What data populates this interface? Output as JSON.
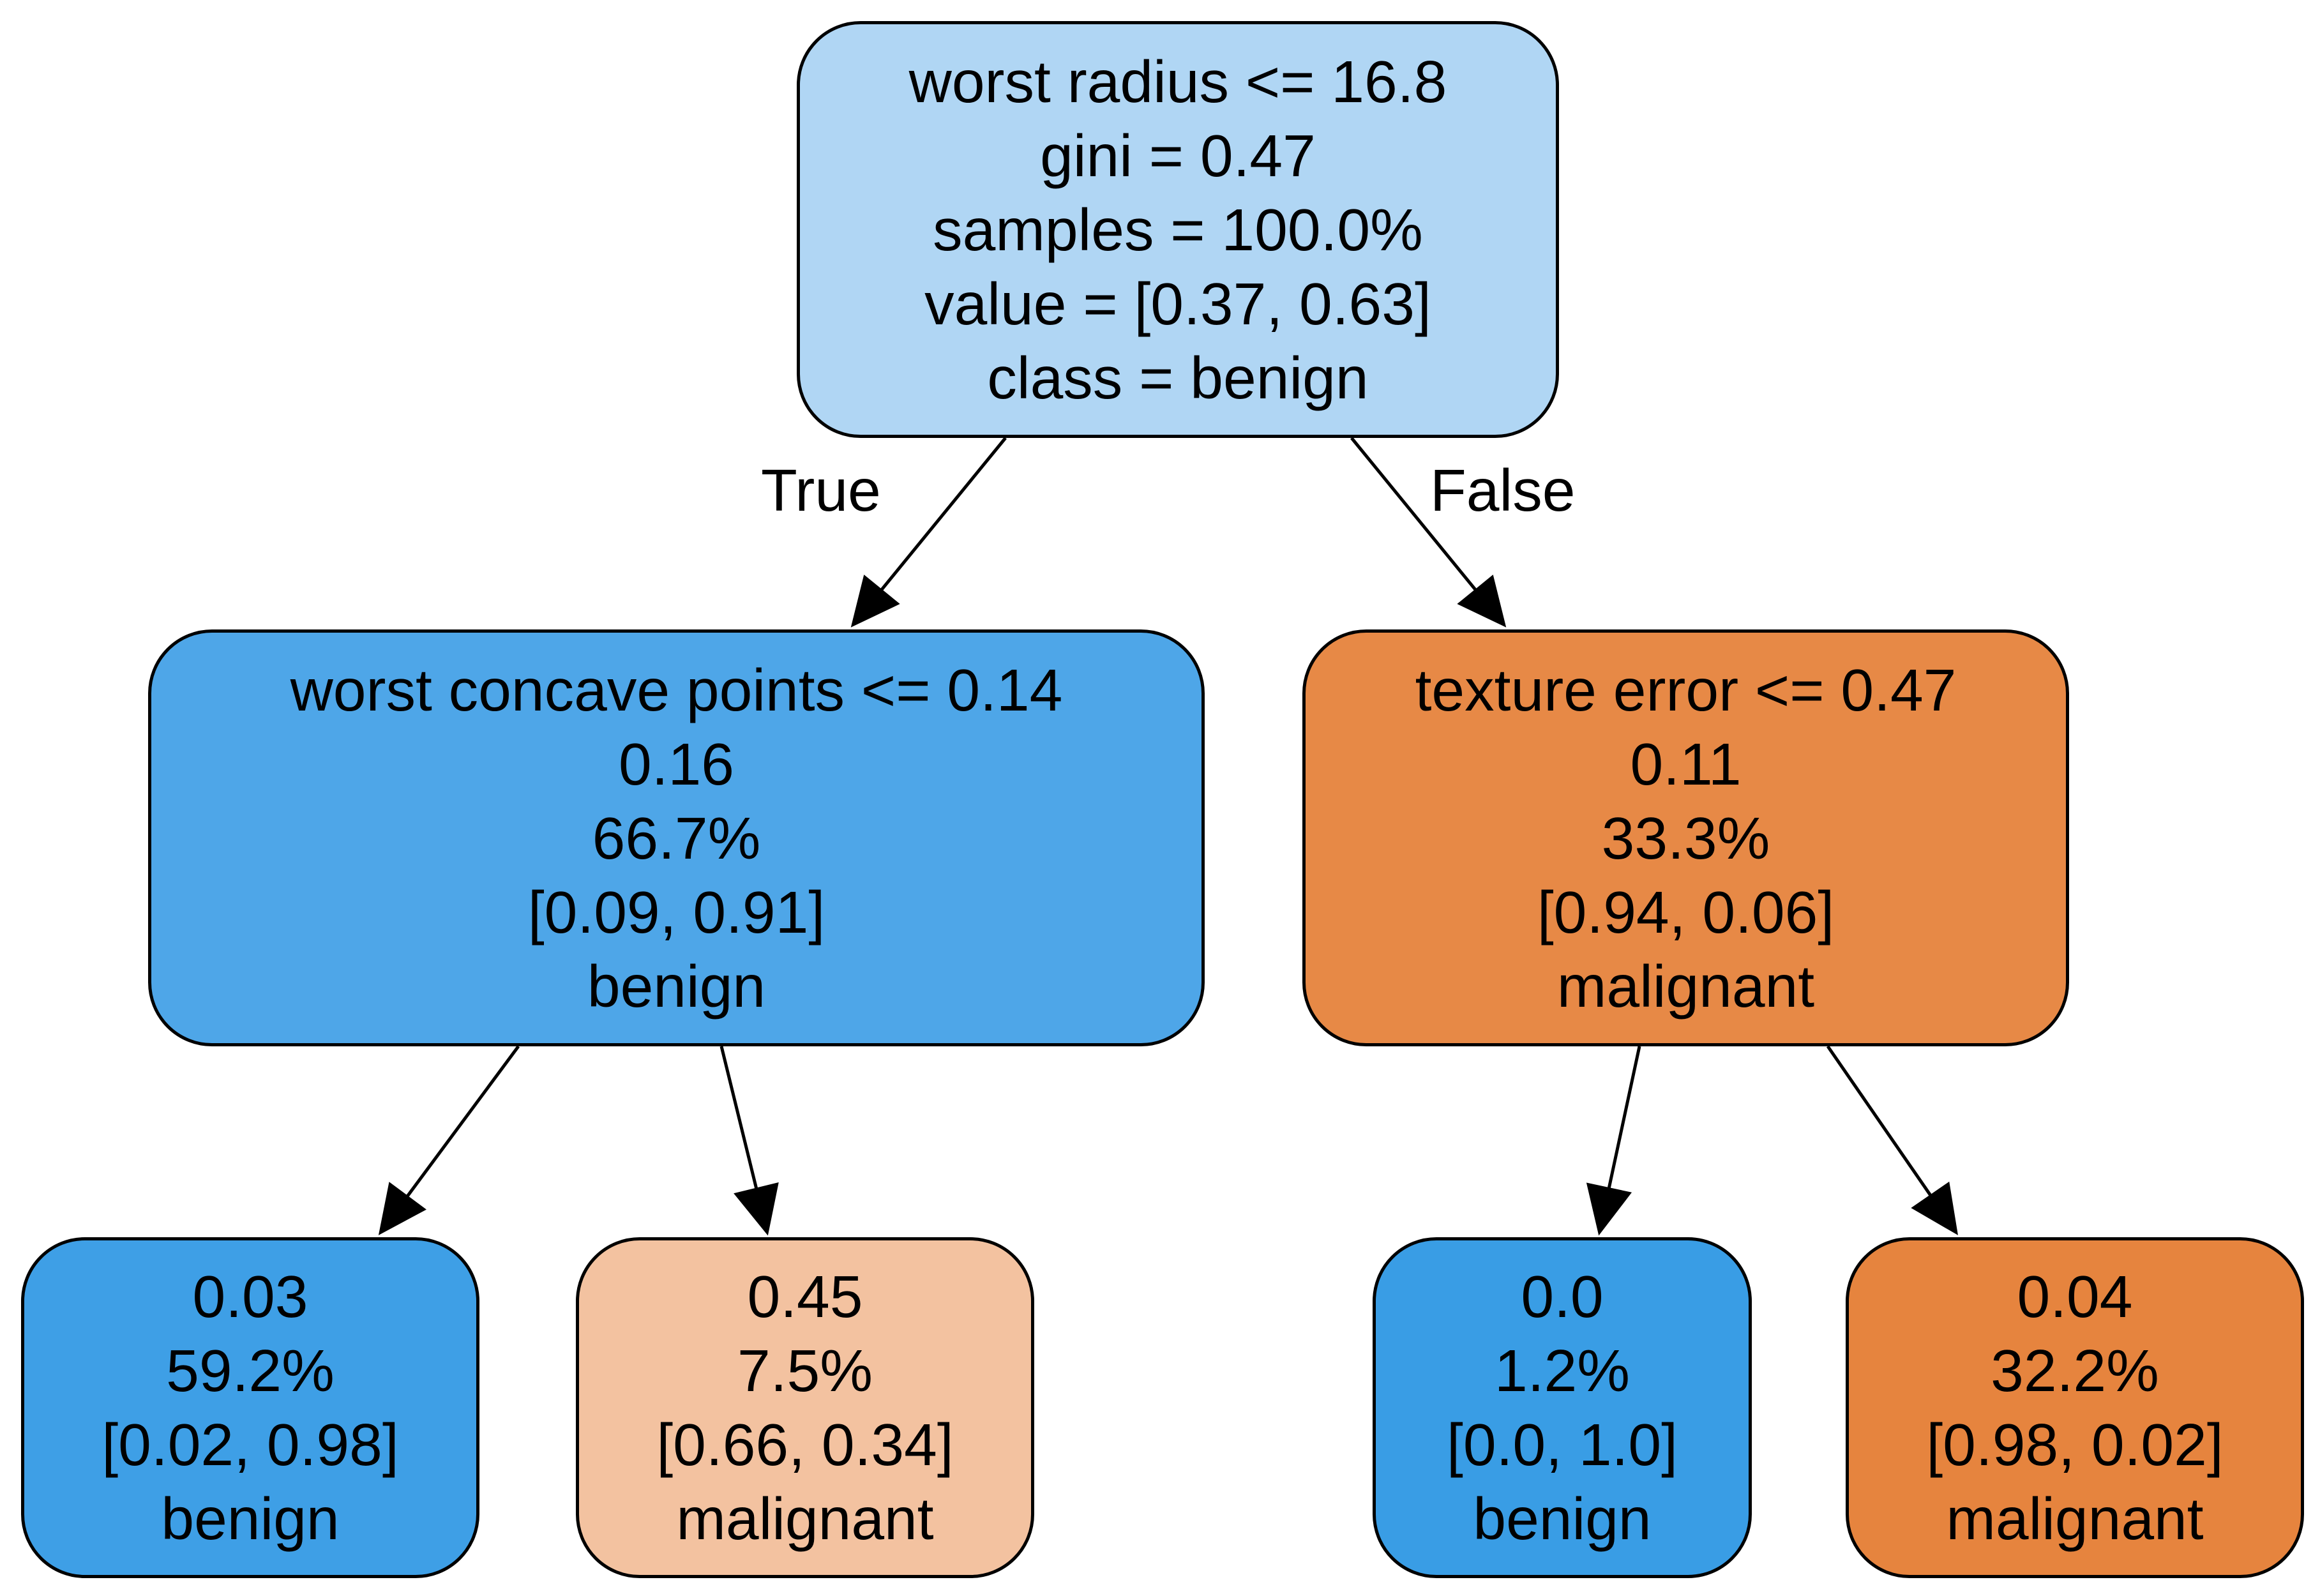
{
  "nodes": [
    {
      "id": "root",
      "lines": [
        "worst radius <= 16.8",
        "gini = 0.47",
        "samples = 100.0%",
        "value = [0.37, 0.63]",
        "class = benign"
      ],
      "fill": "#b0d6f4"
    },
    {
      "id": "left",
      "lines": [
        "worst concave points <= 0.14",
        "0.16",
        "66.7%",
        "[0.09, 0.91]",
        "benign"
      ],
      "fill": "#4ea6e8"
    },
    {
      "id": "right",
      "lines": [
        "texture error <= 0.47",
        "0.11",
        "33.3%",
        "[0.94, 0.06]",
        "malignant"
      ],
      "fill": "#e78946"
    },
    {
      "id": "ll",
      "lines": [
        "0.03",
        "59.2%",
        "[0.02, 0.98]",
        "benign"
      ],
      "fill": "#3e9fe6"
    },
    {
      "id": "lr",
      "lines": [
        "0.45",
        "7.5%",
        "[0.66, 0.34]",
        "malignant"
      ],
      "fill": "#f3c2a0"
    },
    {
      "id": "rl",
      "lines": [
        "0.0",
        "1.2%",
        "[0.0, 1.0]",
        "benign"
      ],
      "fill": "#399de5"
    },
    {
      "id": "rr",
      "lines": [
        "0.04",
        "32.2%",
        "[0.98, 0.02]",
        "malignant"
      ],
      "fill": "#e6843e"
    }
  ],
  "edges": [
    {
      "from": "root",
      "to": "left",
      "label": "True"
    },
    {
      "from": "root",
      "to": "right",
      "label": "False"
    },
    {
      "from": "left",
      "to": "ll",
      "label": ""
    },
    {
      "from": "left",
      "to": "lr",
      "label": ""
    },
    {
      "from": "right",
      "to": "rl",
      "label": ""
    },
    {
      "from": "right",
      "to": "rr",
      "label": ""
    }
  ]
}
